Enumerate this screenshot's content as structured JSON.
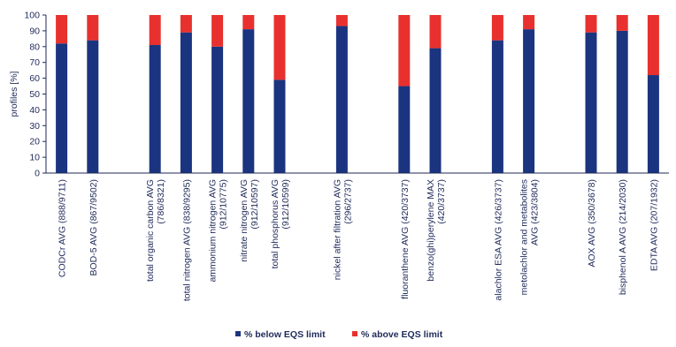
{
  "colors": {
    "below": "#1b3480",
    "above": "#e8312e",
    "axis": "#1f2a5a",
    "text": "#1f2a5a"
  },
  "chart_data": {
    "type": "bar",
    "stacked": true,
    "ylabel": "profiles   [%]",
    "ylim": [
      0,
      100
    ],
    "yticks": [
      0,
      10,
      20,
      30,
      40,
      50,
      60,
      70,
      80,
      90,
      100
    ],
    "grid": false,
    "legend_position": "bottom",
    "categories": [
      {
        "slot": 0,
        "lines": [
          "CODCr AVG (888/9711)"
        ]
      },
      {
        "slot": 1,
        "lines": [
          "BOD-5 AVG (867/9502)"
        ]
      },
      {
        "slot": 3,
        "lines": [
          "total organic carbon AVG",
          "(786/8321)"
        ]
      },
      {
        "slot": 4,
        "lines": [
          "total nitrogen AVG (838/9295)"
        ]
      },
      {
        "slot": 5,
        "lines": [
          "ammonium nitrogen AVG",
          "(912/10775)"
        ]
      },
      {
        "slot": 6,
        "lines": [
          "nitrate nitrogen AVG",
          "(912/10597)"
        ]
      },
      {
        "slot": 7,
        "lines": [
          "total phosphorus AVG",
          "(912/10599)"
        ]
      },
      {
        "slot": 9,
        "lines": [
          "nickel after filtration AVG",
          "(296/2737)"
        ]
      },
      {
        "slot": 11,
        "lines": [
          "fluoranthene AVG (420/3737)"
        ]
      },
      {
        "slot": 12,
        "lines": [
          "benzo(ghi)perylene MAX",
          "(420/3737)"
        ]
      },
      {
        "slot": 14,
        "lines": [
          "alachlor ESA AVG (426/3737)"
        ]
      },
      {
        "slot": 15,
        "lines": [
          "metolachlor and metabolites",
          "AVG (423/3804)"
        ]
      },
      {
        "slot": 17,
        "lines": [
          "AOX AVG (350/3678)"
        ]
      },
      {
        "slot": 18,
        "lines": [
          "bisphenol A AVG (214/2030)"
        ]
      },
      {
        "slot": 19,
        "lines": [
          "EDTA AVG (207/1932)"
        ]
      }
    ],
    "series": [
      {
        "name": "% below EQS limit",
        "values": [
          82,
          84,
          81,
          89,
          80,
          91,
          59,
          93,
          55,
          79,
          84,
          91,
          89,
          90,
          62
        ]
      },
      {
        "name": "% above EQS limit",
        "values": [
          18,
          16,
          19,
          11,
          20,
          9,
          41,
          7,
          45,
          21,
          16,
          9,
          11,
          10,
          38
        ]
      }
    ]
  }
}
